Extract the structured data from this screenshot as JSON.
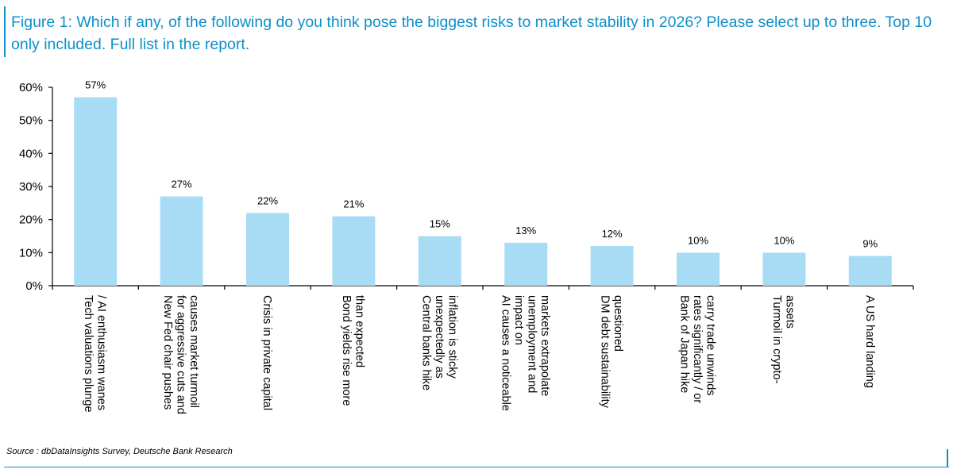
{
  "header": {
    "title": "Figure 1: Which if any, of the following do you think pose the biggest risks to market stability in 2026? Please select up to three. Top 10 only included. Full list in the report."
  },
  "footer": {
    "source": "Source : dbDataInsights Survey, Deutsche Bank Research"
  },
  "colors": {
    "bar": "#a8dcf5",
    "title": "#0e8fc9",
    "axis": "#000000"
  },
  "chart_data": {
    "type": "bar",
    "title": "",
    "xlabel": "",
    "ylabel": "",
    "ylim": [
      0,
      60
    ],
    "yticks": [
      0,
      10,
      20,
      30,
      40,
      50,
      60
    ],
    "ytick_labels": [
      "0%",
      "10%",
      "20%",
      "30%",
      "40%",
      "50%",
      "60%"
    ],
    "grid": false,
    "legend": "none",
    "categories": [
      [
        "Tech valuations plunge",
        "/ AI enthusiasm wanes"
      ],
      [
        "New Fed chair pushes",
        "for aggressive cuts and",
        "causes market turmoil"
      ],
      [
        "Crisis in private capital"
      ],
      [
        "Bond yields rise more",
        "than expected"
      ],
      [
        "Central banks hike",
        "unexpectedly as",
        "inflation is sticky"
      ],
      [
        "AI causes a noticeable",
        "impact on",
        "unemployment and",
        "markets extrapolate"
      ],
      [
        "DM debt sustainability",
        "questioned"
      ],
      [
        "Bank of Japan hike",
        "rates significantly / or",
        "carry trade unwinds"
      ],
      [
        "Turmoil in crypto-",
        "assets"
      ],
      [
        "A US hard landing"
      ]
    ],
    "values": [
      57,
      27,
      22,
      21,
      15,
      13,
      12,
      10,
      10,
      9
    ],
    "data_labels": [
      "57%",
      "27%",
      "22%",
      "21%",
      "15%",
      "13%",
      "12%",
      "10%",
      "10%",
      "9%"
    ]
  }
}
